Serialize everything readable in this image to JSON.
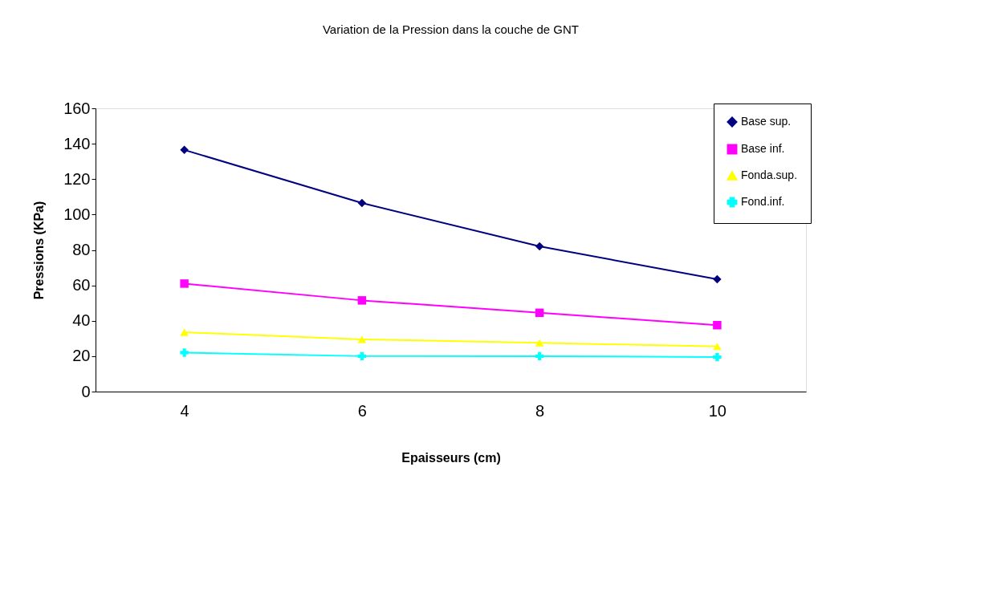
{
  "chart_data": {
    "type": "line",
    "title": "Variation de la Pression  dans la couche de GNT",
    "xlabel": "Epaisseurs (cm)",
    "ylabel": "Pressions (KPa)",
    "categories": [
      "4",
      "6",
      "8",
      "10"
    ],
    "series": [
      {
        "name": "Base sup.",
        "color": "#000080",
        "marker": "diamond",
        "values": [
          136.5,
          106.5,
          82,
          63.5
        ]
      },
      {
        "name": "Base inf.",
        "color": "#ff00ff",
        "marker": "square",
        "values": [
          61,
          51.5,
          44.5,
          37.5
        ]
      },
      {
        "name": "Fonda.sup.",
        "color": "#ffff00",
        "marker": "triangle",
        "values": [
          33.5,
          29.5,
          27.5,
          25.5
        ]
      },
      {
        "name": "Fond.inf.",
        "color": "#00ffff",
        "marker": "cross",
        "values": [
          22,
          20,
          20,
          19.5
        ]
      }
    ],
    "ylim": [
      0,
      160
    ],
    "yticks": [
      0,
      20,
      40,
      60,
      80,
      100,
      120,
      140,
      160
    ],
    "grid": false,
    "legend": "top right"
  }
}
